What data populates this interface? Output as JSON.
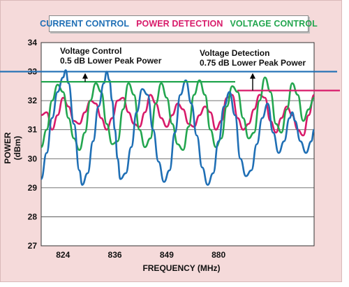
{
  "chart_data": {
    "type": "line",
    "title": "",
    "xlabel": "FREQUENCY (MHz)",
    "ylabel": "POWER (dBm)",
    "x_tick_labels": [
      "824",
      "836",
      "849",
      "880"
    ],
    "x_range": [
      0,
      100
    ],
    "x_tick_positions": [
      8,
      27,
      46,
      65
    ],
    "ylim": [
      27,
      34
    ],
    "y_ticks": [
      27,
      28,
      29,
      30,
      31,
      32,
      33,
      34
    ],
    "grid": true,
    "legend_position": "top",
    "series": [
      {
        "name": "CURRENT CONTROL",
        "color": "#1f6fb5",
        "x": [
          0,
          2,
          4,
          6,
          8,
          9,
          10,
          12,
          14,
          15,
          17,
          19,
          21,
          23,
          24,
          25,
          26,
          27,
          28,
          29,
          31,
          33,
          35,
          37,
          39,
          41,
          43,
          45,
          47,
          49,
          51,
          53,
          55,
          57,
          59,
          61,
          63,
          65,
          67,
          69,
          71,
          73,
          75,
          77,
          79,
          81,
          83,
          85,
          87,
          89,
          91,
          92,
          93,
          95,
          97,
          99,
          100
        ],
        "y": [
          29.3,
          30.2,
          31.4,
          32.3,
          32.8,
          33.05,
          32.6,
          31.2,
          29.6,
          29.1,
          29.5,
          30.6,
          31.8,
          32.6,
          33.0,
          32.7,
          32.0,
          31.0,
          30.0,
          29.3,
          29.5,
          30.4,
          31.6,
          32.4,
          32.2,
          31.0,
          29.9,
          29.2,
          29.6,
          30.9,
          32.2,
          32.7,
          31.9,
          30.8,
          29.7,
          29.1,
          29.5,
          30.6,
          31.8,
          32.3,
          31.5,
          30.0,
          29.4,
          29.6,
          30.5,
          31.4,
          31.9,
          30.9,
          30.2,
          30.6,
          31.4,
          31.6,
          31.3,
          30.6,
          30.2,
          30.6,
          31.0
        ]
      },
      {
        "name": "POWER DETECTION",
        "color": "#d81b6a",
        "x": [
          0,
          2,
          4,
          6,
          8,
          10,
          12,
          14,
          16,
          18,
          20,
          22,
          24,
          26,
          28,
          30,
          32,
          34,
          36,
          38,
          40,
          42,
          44,
          46,
          48,
          50,
          52,
          54,
          56,
          58,
          60,
          62,
          64,
          66,
          68,
          70,
          72,
          74,
          76,
          78,
          80,
          82,
          84,
          86,
          88,
          90,
          92,
          94,
          96,
          98,
          100
        ],
        "y": [
          31.5,
          31.6,
          31.0,
          31.5,
          32.1,
          31.8,
          31.3,
          31.2,
          31.6,
          32.0,
          31.9,
          31.4,
          31.0,
          31.4,
          32.0,
          32.1,
          31.6,
          31.2,
          31.1,
          31.6,
          32.2,
          31.9,
          31.4,
          31.1,
          31.5,
          31.9,
          31.7,
          31.2,
          31.1,
          31.5,
          31.8,
          31.6,
          31.0,
          31.3,
          32.1,
          32.2,
          31.4,
          31.0,
          31.2,
          31.7,
          32.2,
          32.1,
          31.3,
          30.9,
          31.4,
          31.8,
          31.5,
          31.0,
          30.8,
          31.5,
          32.2
        ]
      },
      {
        "name": "VOLTAGE CONTROL",
        "color": "#23a64f",
        "x": [
          0,
          2,
          4,
          6,
          8,
          10,
          12,
          14,
          16,
          18,
          20,
          22,
          24,
          26,
          28,
          30,
          32,
          34,
          36,
          38,
          40,
          42,
          44,
          46,
          48,
          50,
          52,
          54,
          56,
          58,
          60,
          62,
          64,
          66,
          68,
          70,
          72,
          74,
          76,
          78,
          80,
          82,
          84,
          86,
          88,
          90,
          92,
          94,
          96,
          98,
          100
        ],
        "y": [
          30.4,
          31.0,
          32.0,
          32.55,
          32.3,
          31.4,
          30.7,
          30.3,
          30.9,
          32.0,
          32.6,
          32.3,
          31.2,
          30.5,
          30.6,
          31.7,
          32.6,
          32.2,
          31.0,
          30.4,
          30.7,
          31.9,
          32.6,
          32.1,
          31.2,
          30.5,
          30.3,
          31.1,
          32.2,
          32.7,
          32.2,
          31.0,
          30.4,
          30.7,
          31.8,
          32.5,
          32.3,
          31.4,
          30.7,
          30.9,
          32.0,
          32.8,
          32.3,
          31.2,
          30.9,
          31.7,
          32.6,
          32.2,
          31.3,
          31.7,
          32.1
        ]
      }
    ],
    "reference_lines": [
      {
        "series": "CURRENT CONTROL",
        "y": 33.0,
        "color": "#1f6fb5"
      },
      {
        "series": "POWER DETECTION",
        "y": 32.35,
        "color": "#d81b6a"
      },
      {
        "series": "VOLTAGE CONTROL",
        "y": 32.65,
        "color": "#23a64f"
      }
    ],
    "annotations": [
      {
        "line1": "Voltage Control",
        "line2": "0.5 dB Lower Peak Power"
      },
      {
        "line1": "Voltage Detection",
        "line2": "0.75 dB Lower Peak Power"
      }
    ]
  }
}
